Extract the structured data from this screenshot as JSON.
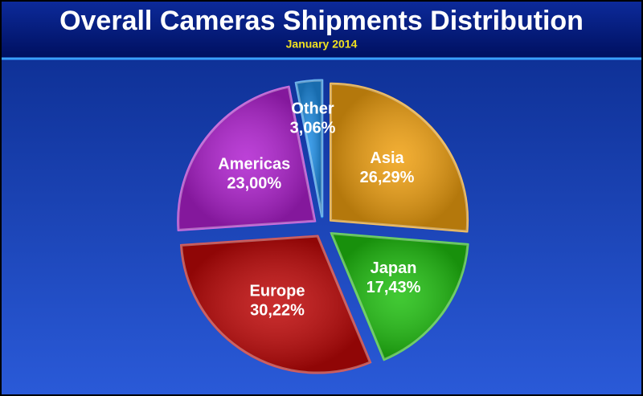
{
  "chart_data": {
    "type": "pie",
    "title": "Overall Cameras Shipments Distribution",
    "subtitle": "January 2014",
    "categories": [
      "Asia",
      "Japan",
      "Europe",
      "Americas",
      "Other"
    ],
    "values": [
      26.29,
      17.43,
      30.22,
      23.0,
      3.06
    ],
    "value_labels": [
      "26,29%",
      "17,43%",
      "30,22%",
      "23,00%",
      "3,06%"
    ],
    "colors": [
      "#f0a010",
      "#20c010",
      "#c00808",
      "#b020d0",
      "#2090e8"
    ]
  }
}
